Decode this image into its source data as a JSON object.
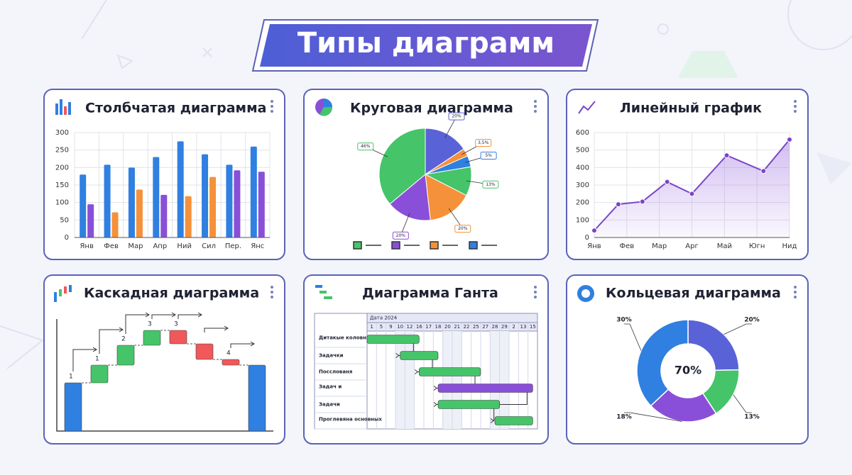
{
  "title": "Типы диаграмм",
  "chart_data": [
    {
      "type": "bar",
      "title": "Столбчатая диаграмма",
      "categories": [
        "Янв",
        "Фев",
        "Мар",
        "Апр",
        "Ний",
        "Сил",
        "Пер.",
        "Янс"
      ],
      "series": [
        {
          "color": "#2f80e0",
          "values": [
            180,
            208,
            200,
            230,
            275,
            238,
            208,
            260
          ]
        },
        {
          "colors": [
            "#8a4fd8",
            "#f5913a",
            "#f5913a",
            "#8a4fd8",
            "#f5913a",
            "#f5913a",
            "#8a4fd8",
            "#8a4fd8"
          ],
          "values": [
            95,
            72,
            137,
            122,
            118,
            173,
            192,
            188
          ]
        }
      ],
      "ylim": [
        0,
        300
      ],
      "yticks": [
        0,
        50,
        100,
        150,
        200,
        250,
        300
      ],
      "grid": true
    },
    {
      "type": "pie",
      "title": "Круговая диаграмма",
      "values": [
        20,
        3.5,
        5,
        13,
        20,
        20,
        46
      ],
      "value_labels": [
        "20%",
        "3,5%",
        "5%",
        "13%",
        "20%",
        "20%",
        "46%"
      ],
      "colors": [
        "#5a62d8",
        "#f5913a",
        "#2f80e0",
        "#45c46a",
        "#f5913a",
        "#8a4fd8",
        "#45c46a"
      ]
    },
    {
      "type": "line",
      "title": "Линейный график",
      "x": [
        0,
        0.74,
        1.48,
        2.24,
        3.0,
        4.07,
        5.2,
        6.0
      ],
      "values": [
        40,
        190,
        205,
        318,
        250,
        470,
        380,
        560
      ],
      "xlim": [
        0,
        6
      ],
      "xticks": [
        {
          "value": 0,
          "label": "Янв"
        },
        {
          "value": 1,
          "label": "Фев"
        },
        {
          "value": 2,
          "label": "Мар"
        },
        {
          "value": 3,
          "label": "Арг"
        },
        {
          "value": 4,
          "label": "Май"
        },
        {
          "value": 5,
          "label": "Югн"
        },
        {
          "value": 6,
          "label": "Нид"
        }
      ],
      "ylim": [
        0,
        600
      ],
      "yticks": [
        0,
        100,
        200,
        300,
        400,
        500,
        600
      ],
      "color": "#7b45c8",
      "grid": true
    },
    {
      "type": "waterfall",
      "title": "Каскадная диаграмма",
      "values": [
        68,
        25,
        28,
        21,
        -19,
        -22,
        -8,
        93
      ],
      "totals": [
        0,
        7
      ],
      "step_labels": [
        "1",
        "1",
        "2",
        "3",
        "3",
        null,
        "4",
        null
      ],
      "colors": {
        "total": "#2f80e0",
        "increase": "#45c46a",
        "decrease": "#f0585a"
      }
    },
    {
      "type": "gantt",
      "title": "Диаграмма Ганта",
      "header": "Дата 2024",
      "columns": [
        "1",
        "5",
        "9",
        "10",
        "12",
        "16",
        "17",
        "18",
        "20",
        "21",
        "22",
        "25",
        "27",
        "28",
        "29",
        "2",
        "13",
        "15"
      ],
      "tasks": [
        {
          "label": "Дитакые коловния",
          "start": 0,
          "end": 5.5,
          "color": "#45c46a"
        },
        {
          "label": "Задачки",
          "start": 3.5,
          "end": 7.5,
          "color": "#45c46a"
        },
        {
          "label": "Посслованя",
          "start": 5.5,
          "end": 12,
          "color": "#45c46a"
        },
        {
          "label": "Задач и",
          "start": 7.5,
          "end": 17.5,
          "color": "#8a4fd8"
        },
        {
          "label": "Задачи",
          "start": 7.5,
          "end": 14,
          "color": "#45c46a"
        },
        {
          "label": "Проглевяна основных",
          "start": 13.5,
          "end": 17.5,
          "color": "#45c46a"
        }
      ]
    },
    {
      "type": "donut",
      "title": "Кольцевая диаграмма",
      "values": [
        20,
        13,
        18,
        30
      ],
      "value_labels": [
        "20%",
        "13%",
        "18%",
        "30%"
      ],
      "colors": [
        "#5a62d8",
        "#45c46a",
        "#8a4fd8",
        "#2f80e0"
      ],
      "center_label": "70%"
    }
  ]
}
